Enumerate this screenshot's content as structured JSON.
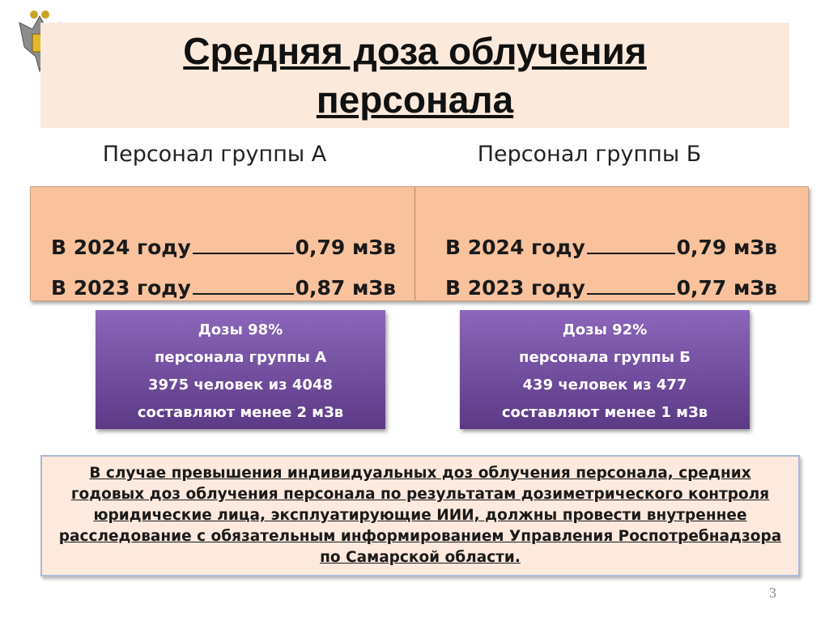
{
  "header": {
    "title": "Средняя доза облучения персонала"
  },
  "groups": [
    {
      "heading": "Персонал группы А",
      "rows": [
        {
          "label": "В 2024 году",
          "value": "0,79 мЗв"
        },
        {
          "label": "В 2023 году",
          "value": "0,87 мЗв"
        }
      ],
      "note": [
        "Дозы 98%",
        "персонала группы А",
        "3975 человек из 4048",
        "составляют менее 2 мЗв"
      ]
    },
    {
      "heading": "Персонал группы Б",
      "rows": [
        {
          "label": "В 2024 году",
          "value": "0,79 мЗв"
        },
        {
          "label": "В 2023 году",
          "value": "0,77 мЗв"
        }
      ],
      "note": [
        "Дозы 92%",
        "персонала группы Б",
        "439 человек из 477",
        "составляют менее 1 мЗв"
      ]
    }
  ],
  "notice": "В случае превышения индивидуальных доз облучения персонала, средних годовых доз облучения персонала по результатам дозиметрического контроля юридические лица, эксплуатирующие ИИИ, должны провести внутреннее расследование с обязательным информированием Управления Роспотребнадзора по Самарской области.",
  "footer": {
    "page": "3"
  }
}
